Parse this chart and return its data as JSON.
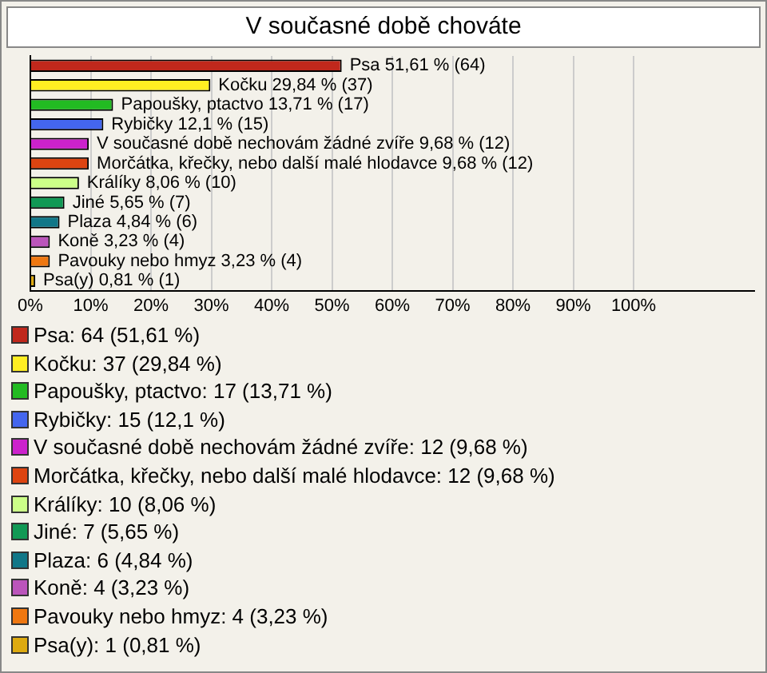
{
  "chart_data": {
    "type": "bar",
    "orientation": "horizontal",
    "title": "V současné době chováte",
    "categories": [
      null,
      null,
      null,
      null,
      null,
      null,
      null,
      null,
      null,
      null,
      null,
      null
    ],
    "values": [
      51.61,
      29.84,
      13.71,
      12.1,
      9.68,
      9.68,
      8.06,
      5.65,
      4.84,
      3.23,
      3.23,
      0.81
    ],
    "colors": [
      "#c0281c",
      "#ffee22",
      "#22bb22",
      "#4466ee",
      "#cc22cc",
      "#dd4411",
      "#ccff88",
      "#119955",
      "#117788",
      "#bb55bb",
      "#ee7711",
      "#ddaa11"
    ],
    "value_labels": [
      "Psa 51,61 % (64)",
      "Kočku 29,84 % (37)",
      "Papoušky, ptactvo 13,71 % (17)",
      "Rybičky 12,1 % (15)",
      "V současné době nechovám žádné zvíře 9,68 % (12)",
      "Morčátka, křečky, nebo další malé hlodavce 9,68 % (12)",
      "Králíky 8,06 % (10)",
      "Jiné 5,65 % (7)",
      "Plaza 4,84 % (6)",
      "Koně 3,23 % (4)",
      "Pavouky nebo hmyz 3,23 % (4)",
      "Psa(y) 0,81 % (1)"
    ],
    "xlim": [
      0,
      120
    ],
    "xticks": [
      {
        "value": 0,
        "label": "0%"
      },
      {
        "value": 10,
        "label": "10%"
      },
      {
        "value": 20,
        "label": "20%"
      },
      {
        "value": 30,
        "label": "30%"
      },
      {
        "value": 40,
        "label": "40%"
      },
      {
        "value": 50,
        "label": "50%"
      },
      {
        "value": 60,
        "label": "60%"
      },
      {
        "value": 70,
        "label": "70%"
      },
      {
        "value": 80,
        "label": "80%"
      },
      {
        "value": 90,
        "label": "90%"
      },
      {
        "value": 100,
        "label": "100%"
      }
    ],
    "grid": "x",
    "tick_labels": "x",
    "annotations": [
      "Psa: 64 (51,61 %)",
      "Kočku: 37 (29,84 %)",
      "Papoušky, ptactvo: 17 (13,71 %)",
      "Rybičky: 15 (12,1 %)",
      "V současné době nechovám žádné zvíře: 12 (9,68 %)",
      "Morčátka, křečky, nebo další malé hlodavce: 12 (9,68 %)",
      "Králíky: 10 (8,06 %)",
      "Jiné: 7 (5,65 %)",
      "Plaza: 6 (4,84 %)",
      "Koně: 4 (3,23 %)",
      "Pavouky nebo hmyz: 4 (3,23 %)",
      "Psa(y): 1 (0,81 %)"
    ]
  }
}
